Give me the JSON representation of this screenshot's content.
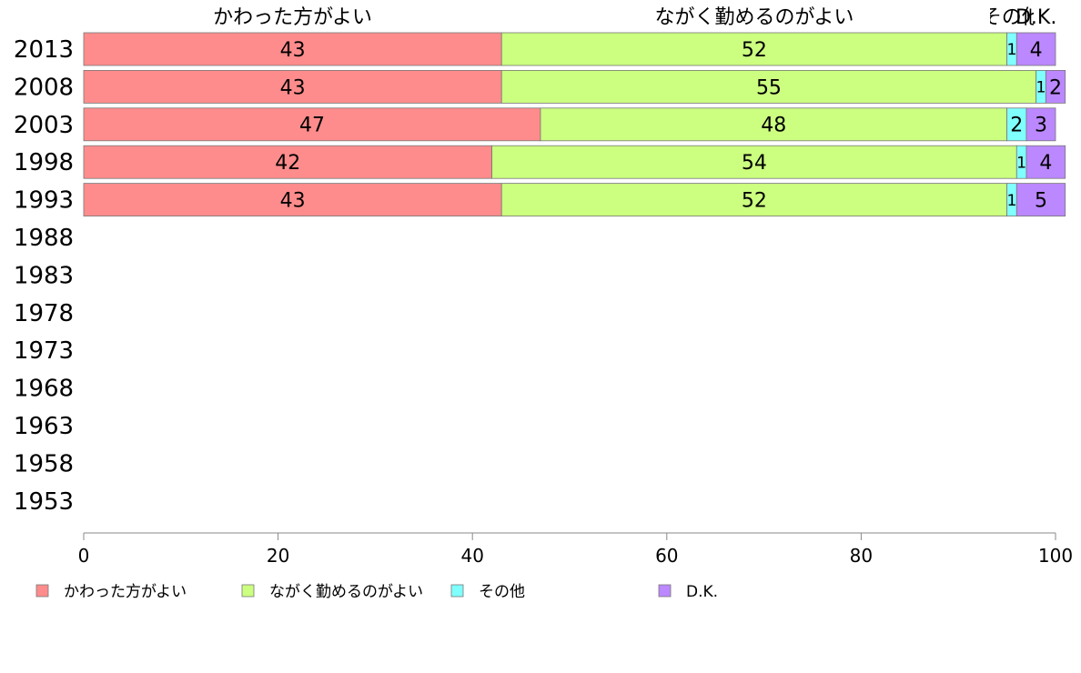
{
  "chart_data": {
    "type": "bar",
    "orientation": "horizontal",
    "stacked": true,
    "categories": [
      "2013",
      "2008",
      "2003",
      "1998",
      "1993",
      "1988",
      "1983",
      "1978",
      "1973",
      "1968",
      "1963",
      "1958",
      "1953"
    ],
    "series": [
      {
        "name": "かわった方がよい",
        "color": "#FF8C8C",
        "values": [
          43,
          43,
          47,
          42,
          43,
          null,
          null,
          null,
          null,
          null,
          null,
          null,
          null
        ]
      },
      {
        "name": "ながく勤めるのがよい",
        "color": "#CCFF80",
        "values": [
          52,
          55,
          48,
          54,
          52,
          null,
          null,
          null,
          null,
          null,
          null,
          null,
          null
        ]
      },
      {
        "name": "その他",
        "color": "#80FFFF",
        "values": [
          1,
          1,
          2,
          1,
          1,
          null,
          null,
          null,
          null,
          null,
          null,
          null,
          null
        ]
      },
      {
        "name": "D.K.",
        "color": "#BB88FF",
        "values": [
          4,
          2,
          3,
          4,
          5,
          null,
          null,
          null,
          null,
          null,
          null,
          null,
          null
        ]
      }
    ],
    "top_labels": [
      "かわった方がよい",
      "ながく勤めるのがよい",
      "その他",
      "D.K."
    ],
    "xlim": [
      0,
      100
    ],
    "x_ticks": [
      "0",
      "20",
      "40",
      "60",
      "80",
      "100"
    ],
    "xlabel": "",
    "ylabel": "",
    "grid": false,
    "legend_position": "bottom"
  }
}
